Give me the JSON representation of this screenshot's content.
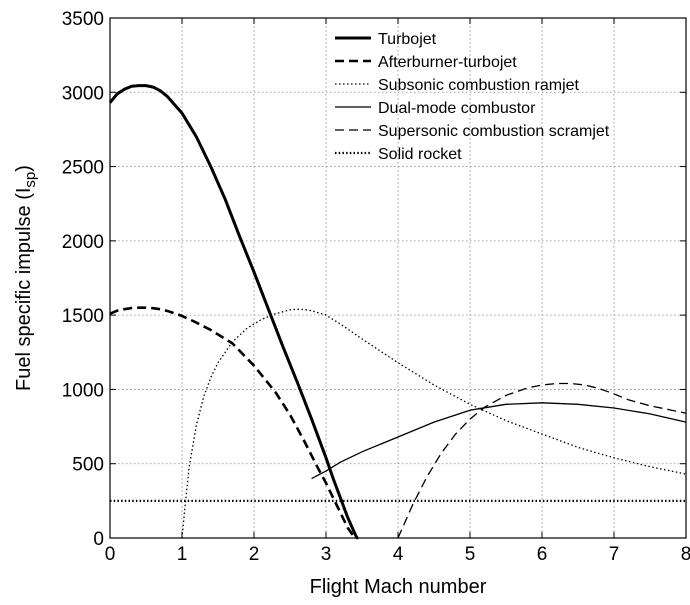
{
  "chart_data": {
    "type": "line",
    "xlabel": "Flight Mach number",
    "ylabel_main": "Fuel specific impulse (I",
    "ylabel_sub": "sp",
    "ylabel_close": ")",
    "xlim": [
      0,
      8
    ],
    "ylim": [
      0,
      3500
    ],
    "xticks": [
      0,
      1,
      2,
      3,
      4,
      5,
      6,
      7,
      8
    ],
    "yticks": [
      0,
      500,
      1000,
      1500,
      2000,
      2500,
      3000,
      3500
    ],
    "xtick_labels": [
      "0",
      "1",
      "2",
      "3",
      "4",
      "5",
      "6",
      "7",
      "8"
    ],
    "ytick_labels": [
      "0",
      "500",
      "1000",
      "1500",
      "2000",
      "2500",
      "3000",
      "3500"
    ],
    "grid": true,
    "legend_position": "top-right",
    "series": [
      {
        "name": "Turbojet",
        "style": "solid-thick",
        "x": [
          0,
          0.1,
          0.2,
          0.3,
          0.4,
          0.5,
          0.6,
          0.7,
          0.8,
          1.0,
          1.2,
          1.4,
          1.6,
          1.8,
          2.0,
          2.2,
          2.4,
          2.6,
          2.8,
          3.0,
          3.1,
          3.2,
          3.3,
          3.4,
          3.43
        ],
        "y": [
          2930,
          2990,
          3020,
          3040,
          3045,
          3045,
          3035,
          3010,
          2970,
          2860,
          2700,
          2500,
          2280,
          2030,
          1790,
          1540,
          1290,
          1050,
          800,
          540,
          400,
          270,
          140,
          30,
          0
        ]
      },
      {
        "name": "Afterburner-turbojet",
        "style": "dashed-thick",
        "x": [
          0,
          0.1,
          0.2,
          0.3,
          0.4,
          0.5,
          0.6,
          0.7,
          0.8,
          1.0,
          1.2,
          1.4,
          1.7,
          2.0,
          2.3,
          2.5,
          2.7,
          2.9,
          3.0,
          3.1,
          3.2,
          3.3,
          3.4,
          3.45
        ],
        "y": [
          1510,
          1530,
          1540,
          1548,
          1550,
          1550,
          1547,
          1540,
          1528,
          1495,
          1450,
          1400,
          1310,
          1160,
          980,
          830,
          650,
          460,
          370,
          270,
          170,
          70,
          0,
          0
        ]
      },
      {
        "name": "Subsonic combustion ramjet",
        "style": "dotted",
        "x": [
          1.0,
          1.05,
          1.1,
          1.2,
          1.3,
          1.4,
          1.5,
          1.7,
          1.9,
          2.1,
          2.3,
          2.5,
          2.6,
          2.7,
          2.8,
          3.0,
          3.2,
          3.5,
          4.0,
          4.5,
          5.0,
          5.5,
          6.0,
          6.5,
          7.0,
          7.5,
          8.0
        ],
        "y": [
          0,
          250,
          480,
          760,
          950,
          1080,
          1180,
          1320,
          1410,
          1470,
          1510,
          1535,
          1540,
          1538,
          1530,
          1500,
          1440,
          1340,
          1180,
          1030,
          900,
          790,
          700,
          610,
          540,
          480,
          430
        ]
      },
      {
        "name": "Dual-mode combustor",
        "style": "solid-thin",
        "x": [
          2.8,
          3.0,
          3.2,
          3.5,
          4.0,
          4.5,
          5.0,
          5.5,
          6.0,
          6.5,
          7.0,
          7.5,
          8.0
        ],
        "y": [
          400,
          450,
          510,
          580,
          680,
          780,
          860,
          900,
          910,
          900,
          875,
          835,
          780
        ]
      },
      {
        "name": "Supersonic combustion scramjet",
        "style": "dashed-thin",
        "x": [
          4.0,
          4.1,
          4.2,
          4.4,
          4.6,
          4.8,
          5.0,
          5.2,
          5.5,
          5.8,
          6.0,
          6.2,
          6.4,
          6.6,
          6.8,
          7.0,
          7.2,
          7.5,
          7.8,
          8.0
        ],
        "y": [
          0,
          110,
          220,
          410,
          570,
          700,
          800,
          880,
          960,
          1010,
          1030,
          1040,
          1040,
          1030,
          1005,
          970,
          930,
          890,
          860,
          840
        ]
      },
      {
        "name": "Solid rocket",
        "style": "dotted-thick",
        "x": [
          0,
          8
        ],
        "y": [
          250,
          250
        ]
      }
    ]
  }
}
